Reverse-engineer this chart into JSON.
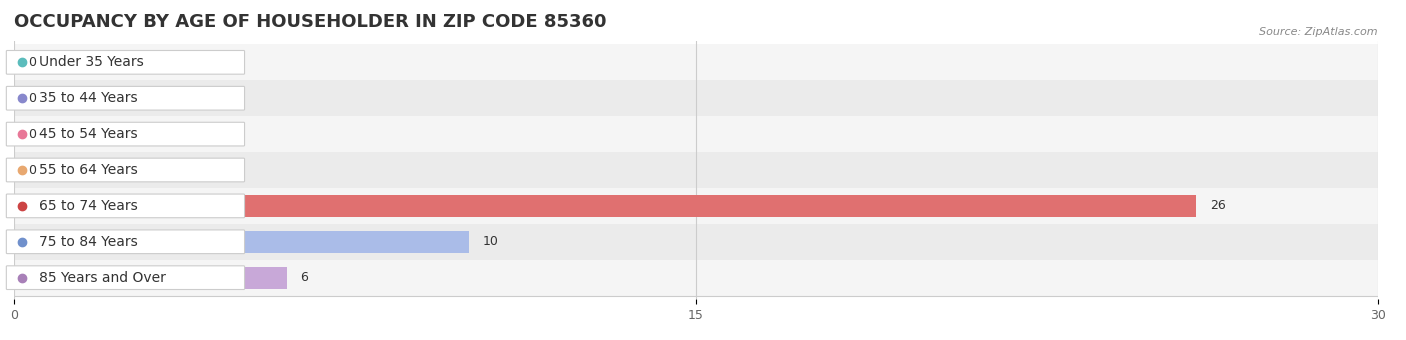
{
  "title": "OCCUPANCY BY AGE OF HOUSEHOLDER IN ZIP CODE 85360",
  "source": "Source: ZipAtlas.com",
  "categories": [
    "Under 35 Years",
    "35 to 44 Years",
    "45 to 54 Years",
    "55 to 64 Years",
    "65 to 74 Years",
    "75 to 84 Years",
    "85 Years and Over"
  ],
  "values": [
    0,
    0,
    0,
    0,
    26,
    10,
    6
  ],
  "bar_colors": [
    "#7ececa",
    "#aaaaee",
    "#f5a0b0",
    "#f5c89a",
    "#e07070",
    "#aabce8",
    "#c8a8d8"
  ],
  "dot_colors": [
    "#5bbcbc",
    "#8888cc",
    "#e87898",
    "#e8a870",
    "#cc4444",
    "#7090cc",
    "#a880b8"
  ],
  "bar_bg_color": "#f0f0f0",
  "background_color": "#ffffff",
  "xlim": [
    0,
    30
  ],
  "xticks": [
    0,
    15,
    30
  ],
  "title_fontsize": 13,
  "label_fontsize": 10,
  "value_fontsize": 9,
  "bar_height": 0.62,
  "row_bg_colors": [
    "#f5f5f5",
    "#ebebeb"
  ]
}
